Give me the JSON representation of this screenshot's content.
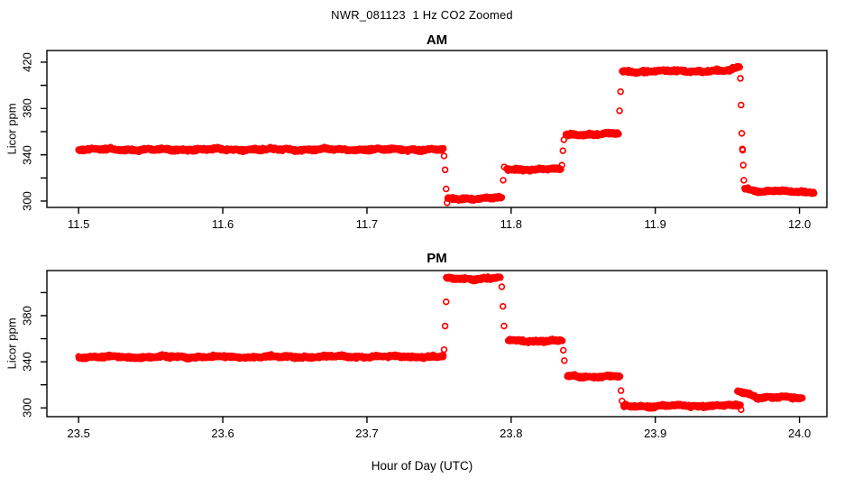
{
  "page": {
    "title": "NWR_081123  1 Hz CO2 Zoomed",
    "xlabel": "Hour of Day (UTC)"
  },
  "chart_data": [
    {
      "type": "scatter",
      "panel": "AM",
      "title": "AM",
      "ylabel": "Licor ppm",
      "marker": "open-circle",
      "color": "#ff0000",
      "sample_rate_hz": 1,
      "grid": false,
      "xlim": [
        11.478,
        12.019
      ],
      "ylim": [
        294.5,
        430.1
      ],
      "xticks": [
        11.5,
        11.6,
        11.7,
        11.8,
        11.9,
        12.0
      ],
      "xtick_labels": [
        "11.5",
        "11.6",
        "11.7",
        "11.8",
        "11.9",
        "12.0"
      ],
      "yticks": [
        300,
        320,
        340,
        360,
        380,
        400,
        420
      ],
      "ytick_labels": [
        "300",
        "",
        "340",
        "",
        "380",
        "",
        "420"
      ],
      "segments": [
        {
          "x0": 11.5,
          "x1": 11.753,
          "y0": 344.5,
          "y1": 344.5
        },
        {
          "x0": 11.756,
          "x1": 11.7935,
          "y0": 302.0,
          "y1": 302.5
        },
        {
          "x0": 11.797,
          "x1": 11.8345,
          "y0": 327.5,
          "y1": 327.5
        },
        {
          "x0": 11.838,
          "x1": 11.8745,
          "y0": 357.5,
          "y1": 358.0
        },
        {
          "x0": 11.877,
          "x1": 11.952,
          "y0": 412.0,
          "y1": 412.5
        },
        {
          "x0": 11.952,
          "x1": 11.9585,
          "y0": 412.5,
          "y1": 416.5
        },
        {
          "x0": 11.962,
          "x1": 11.972,
          "y0": 311.0,
          "y1": 308.5
        },
        {
          "x0": 11.972,
          "x1": 12.01,
          "y0": 308.5,
          "y1": 308.0
        }
      ],
      "transition_points": [
        [
          11.7535,
          339.0
        ],
        [
          11.7542,
          327.0
        ],
        [
          11.7549,
          310.5
        ],
        [
          11.7556,
          298.5
        ],
        [
          11.7945,
          318.0
        ],
        [
          11.7952,
          329.5
        ],
        [
          11.8352,
          331.0
        ],
        [
          11.8359,
          343.5
        ],
        [
          11.8366,
          353.0
        ],
        [
          11.8752,
          378.0
        ],
        [
          11.8759,
          394.5
        ],
        [
          11.959,
          406.0
        ],
        [
          11.9595,
          383.0
        ],
        [
          11.96,
          358.5
        ],
        [
          11.9604,
          345.0
        ],
        [
          11.9606,
          344.0
        ],
        [
          11.961,
          331.0
        ],
        [
          11.9614,
          318.0
        ]
      ]
    },
    {
      "type": "scatter",
      "panel": "PM",
      "title": "PM",
      "ylabel": "Licor ppm",
      "marker": "open-circle",
      "color": "#ff0000",
      "sample_rate_hz": 1,
      "grid": false,
      "xlim": [
        23.478,
        24.019
      ],
      "ylim": [
        292.4,
        419.1
      ],
      "xticks": [
        23.5,
        23.6,
        23.7,
        23.8,
        23.9,
        24.0
      ],
      "xtick_labels": [
        "23.5",
        "23.6",
        "23.7",
        "23.8",
        "23.9",
        "24.0"
      ],
      "yticks": [
        300,
        320,
        340,
        360,
        380,
        400
      ],
      "ytick_labels": [
        "300",
        "",
        "340",
        "",
        "380",
        ""
      ],
      "segments": [
        {
          "x0": 23.5,
          "x1": 23.753,
          "y0": 344.0,
          "y1": 344.5
        },
        {
          "x0": 23.755,
          "x1": 23.7925,
          "y0": 412.0,
          "y1": 412.5
        },
        {
          "x0": 23.798,
          "x1": 23.8355,
          "y0": 358.5,
          "y1": 358.0
        },
        {
          "x0": 23.839,
          "x1": 23.8755,
          "y0": 327.5,
          "y1": 327.0
        },
        {
          "x0": 23.878,
          "x1": 23.959,
          "y0": 301.5,
          "y1": 302.0
        },
        {
          "x0": 23.957,
          "x1": 23.97,
          "y0": 314.5,
          "y1": 310.0
        },
        {
          "x0": 23.97,
          "x1": 24.002,
          "y0": 309.5,
          "y1": 308.5
        }
      ],
      "transition_points": [
        [
          23.7535,
          350.5
        ],
        [
          23.7542,
          371.0
        ],
        [
          23.7549,
          392.0
        ],
        [
          23.7935,
          405.0
        ],
        [
          23.7943,
          388.0
        ],
        [
          23.7951,
          371.0
        ],
        [
          23.8362,
          350.0
        ],
        [
          23.8369,
          341.0
        ],
        [
          23.8762,
          315.0
        ],
        [
          23.8769,
          306.0
        ],
        [
          23.9595,
          298.5
        ]
      ]
    }
  ]
}
